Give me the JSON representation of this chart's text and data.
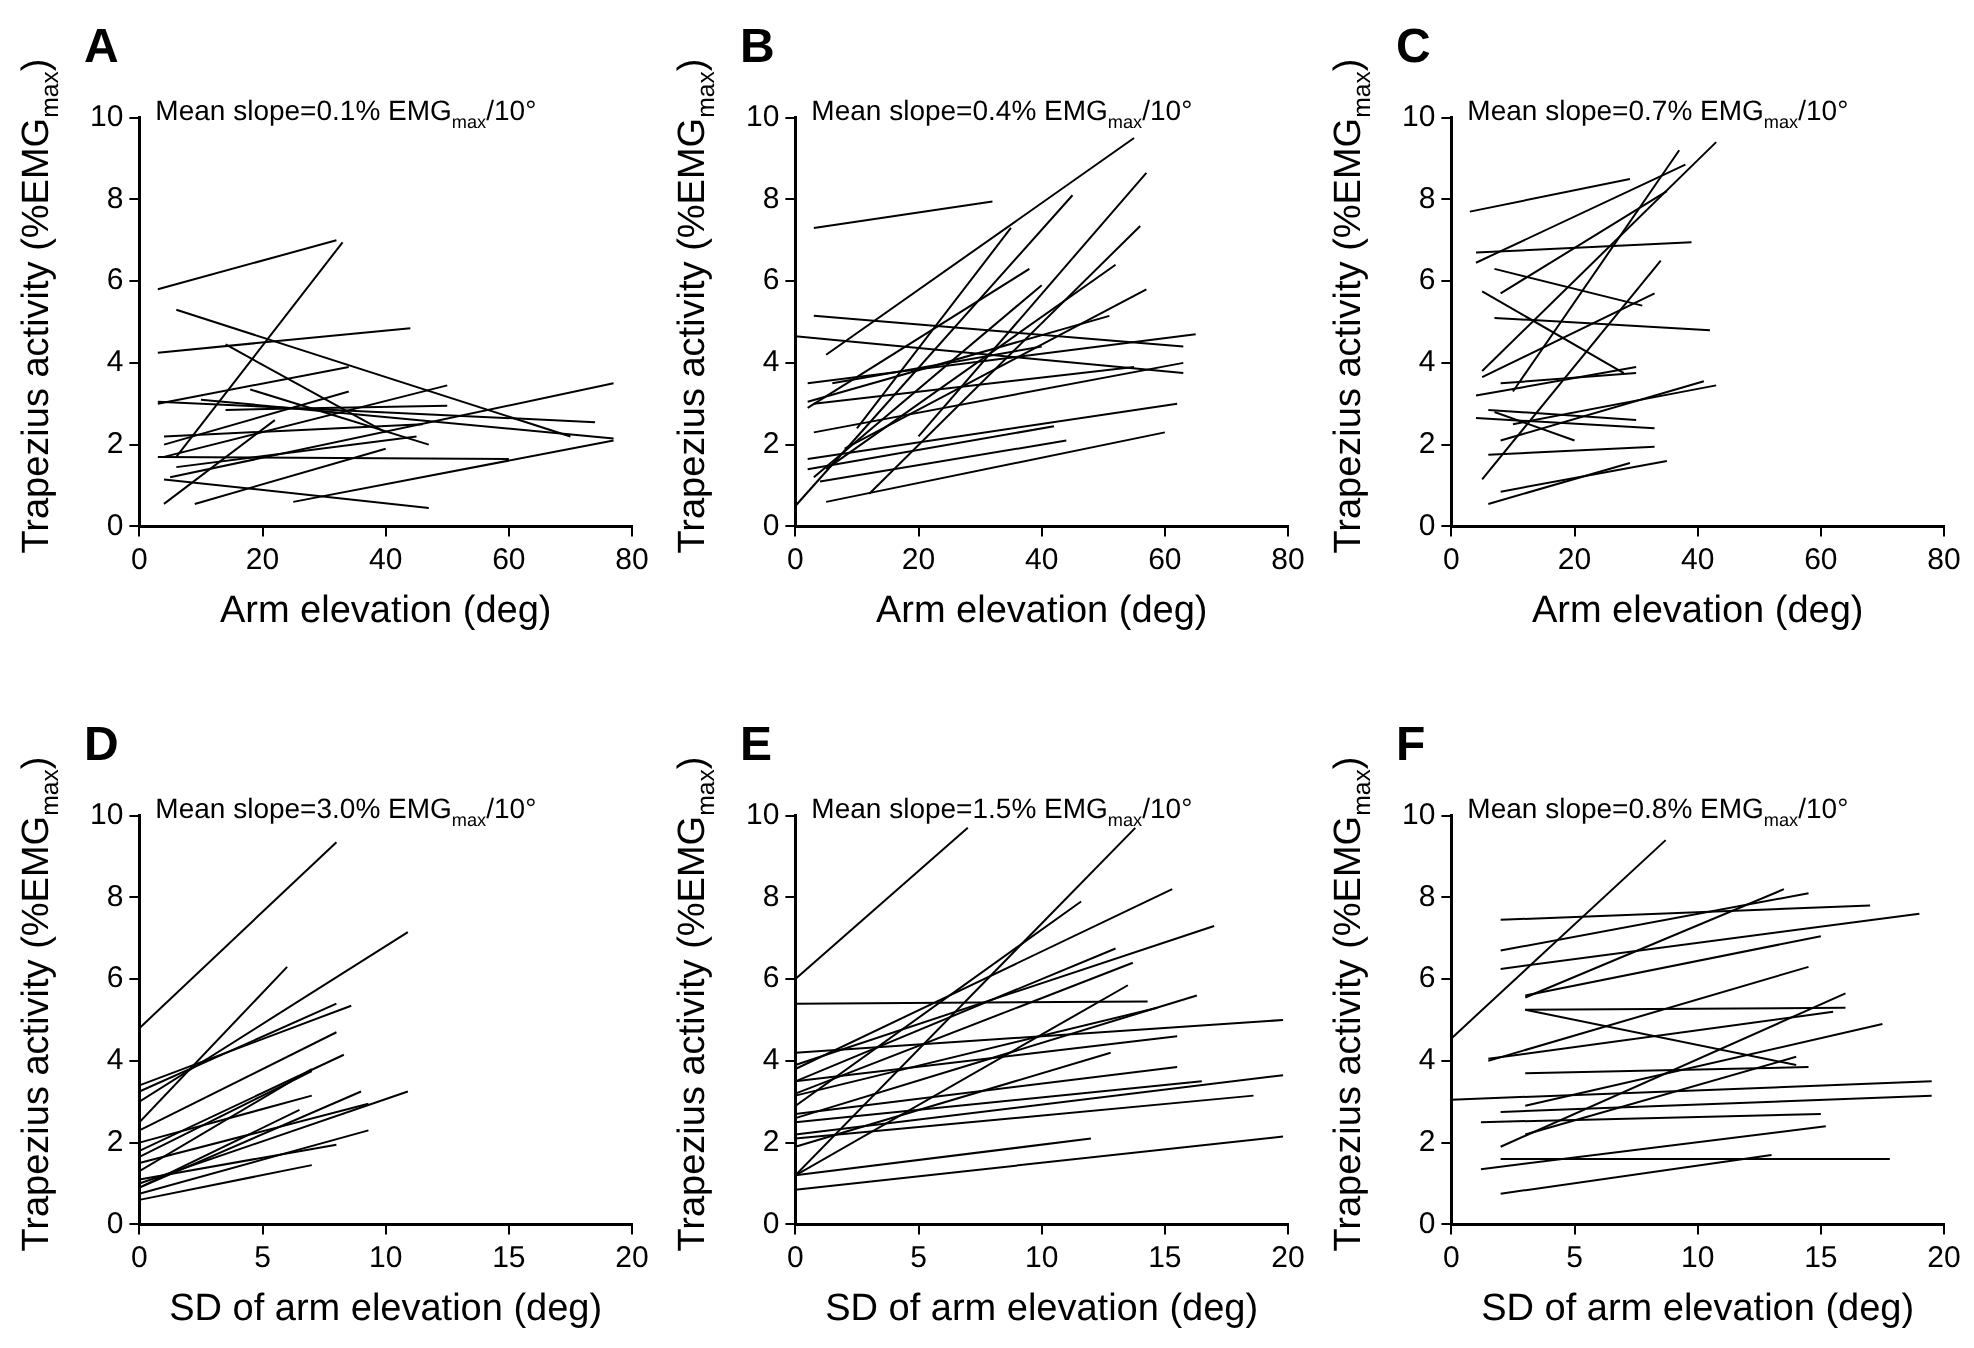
{
  "chart_data": [
    {
      "type": "line",
      "title": "A",
      "xlabel": "Arm elevation (deg)",
      "ylabel": "Trapezius activity (%EMG$_{max}$)",
      "annotations": [
        "Mean slope=0.1% EMG$_{max}$/10°"
      ],
      "xlim": [
        0,
        80
      ],
      "xticks": [
        0,
        20,
        40,
        60,
        80
      ],
      "ylim": [
        0,
        10
      ],
      "yticks": [
        0,
        2,
        4,
        6,
        8,
        10
      ],
      "grid": false,
      "legend": false,
      "series": [
        {
          "color": "#000000",
          "x": [
            3,
            32
          ],
          "values": [
            5.8,
            7.0
          ]
        },
        {
          "color": "#000000",
          "x": [
            6,
            33
          ],
          "values": [
            1.7,
            6.95
          ]
        },
        {
          "color": "#000000",
          "x": [
            6,
            70
          ],
          "values": [
            5.3,
            2.2
          ]
        },
        {
          "color": "#000000",
          "x": [
            3,
            44
          ],
          "values": [
            4.25,
            4.85
          ]
        },
        {
          "color": "#000000",
          "x": [
            3,
            34
          ],
          "values": [
            3.0,
            3.9
          ]
        },
        {
          "color": "#000000",
          "x": [
            14,
            40
          ],
          "values": [
            4.45,
            2.3
          ]
        },
        {
          "color": "#000000",
          "x": [
            3,
            74
          ],
          "values": [
            3.05,
            2.55
          ]
        },
        {
          "color": "#000000",
          "x": [
            18,
            47
          ],
          "values": [
            3.35,
            2.0
          ]
        },
        {
          "color": "#000000",
          "x": [
            4,
            34
          ],
          "values": [
            2.0,
            3.3
          ]
        },
        {
          "color": "#000000",
          "x": [
            4,
            50
          ],
          "values": [
            1.7,
            3.45
          ]
        },
        {
          "color": "#000000",
          "x": [
            10,
            77
          ],
          "values": [
            3.1,
            2.15
          ]
        },
        {
          "color": "#000000",
          "x": [
            25,
            77
          ],
          "values": [
            0.6,
            2.1
          ]
        },
        {
          "color": "#000000",
          "x": [
            4,
            22
          ],
          "values": [
            0.55,
            2.6
          ]
        },
        {
          "color": "#000000",
          "x": [
            4,
            47
          ],
          "values": [
            1.15,
            0.45
          ]
        },
        {
          "color": "#000000",
          "x": [
            9,
            40
          ],
          "values": [
            0.55,
            1.9
          ]
        },
        {
          "color": "#000000",
          "x": [
            3,
            60
          ],
          "values": [
            1.7,
            1.65
          ]
        },
        {
          "color": "#000000",
          "x": [
            5,
            77
          ],
          "values": [
            1.2,
            3.5
          ]
        },
        {
          "color": "#000000",
          "x": [
            6,
            45
          ],
          "values": [
            1.45,
            2.2
          ]
        },
        {
          "color": "#000000",
          "x": [
            14,
            50
          ],
          "values": [
            2.85,
            2.95
          ]
        },
        {
          "color": "#000000",
          "x": [
            4,
            46
          ],
          "values": [
            2.2,
            2.5
          ]
        }
      ]
    },
    {
      "type": "line",
      "title": "B",
      "xlabel": "Arm elevation (deg)",
      "ylabel": "Trapezius activity (%EMG$_{max}$)",
      "annotations": [
        "Mean slope=0.4% EMG$_{max}$/10°"
      ],
      "xlim": [
        0,
        80
      ],
      "xticks": [
        0,
        20,
        40,
        60,
        80
      ],
      "ylim": [
        0,
        10
      ],
      "yticks": [
        0,
        2,
        4,
        6,
        8,
        10
      ],
      "grid": false,
      "legend": false,
      "series": [
        {
          "color": "#000000",
          "x": [
            3,
            32
          ],
          "values": [
            7.3,
            7.95
          ]
        },
        {
          "color": "#000000",
          "x": [
            0,
            45
          ],
          "values": [
            0.5,
            8.1
          ]
        },
        {
          "color": "#000000",
          "x": [
            5,
            55
          ],
          "values": [
            4.2,
            9.5
          ]
        },
        {
          "color": "#000000",
          "x": [
            3,
            63
          ],
          "values": [
            5.15,
            4.4
          ]
        },
        {
          "color": "#000000",
          "x": [
            0,
            63
          ],
          "values": [
            4.65,
            3.75
          ]
        },
        {
          "color": "#000000",
          "x": [
            20,
            57
          ],
          "values": [
            2.2,
            8.65
          ]
        },
        {
          "color": "#000000",
          "x": [
            10,
            35
          ],
          "values": [
            2.4,
            7.3
          ]
        },
        {
          "color": "#000000",
          "x": [
            2,
            38
          ],
          "values": [
            2.9,
            6.3
          ]
        },
        {
          "color": "#000000",
          "x": [
            12,
            56
          ],
          "values": [
            0.8,
            7.35
          ]
        },
        {
          "color": "#000000",
          "x": [
            5,
            52
          ],
          "values": [
            1.4,
            6.4
          ]
        },
        {
          "color": "#000000",
          "x": [
            8,
            57
          ],
          "values": [
            1.9,
            5.8
          ]
        },
        {
          "color": "#000000",
          "x": [
            3,
            40
          ],
          "values": [
            1.2,
            5.9
          ]
        },
        {
          "color": "#000000",
          "x": [
            2,
            65
          ],
          "values": [
            3.5,
            4.7
          ]
        },
        {
          "color": "#000000",
          "x": [
            3,
            63
          ],
          "values": [
            2.3,
            4.0
          ]
        },
        {
          "color": "#000000",
          "x": [
            2,
            62
          ],
          "values": [
            1.65,
            3.0
          ]
        },
        {
          "color": "#000000",
          "x": [
            2,
            42
          ],
          "values": [
            1.4,
            2.45
          ]
        },
        {
          "color": "#000000",
          "x": [
            5,
            60
          ],
          "values": [
            0.6,
            2.3
          ]
        },
        {
          "color": "#000000",
          "x": [
            4,
            44
          ],
          "values": [
            1.1,
            2.1
          ]
        },
        {
          "color": "#000000",
          "x": [
            3,
            55
          ],
          "values": [
            3.0,
            3.9
          ]
        },
        {
          "color": "#000000",
          "x": [
            6,
            40
          ],
          "values": [
            3.5,
            4.4
          ]
        },
        {
          "color": "#000000",
          "x": [
            2,
            51
          ],
          "values": [
            3.05,
            5.15
          ]
        }
      ]
    },
    {
      "type": "line",
      "title": "C",
      "xlabel": "Arm elevation (deg)",
      "ylabel": "Trapezius activity (%EMG$_{max}$)",
      "annotations": [
        "Mean slope=0.7% EMG$_{max}$/10°"
      ],
      "xlim": [
        0,
        80
      ],
      "xticks": [
        0,
        20,
        40,
        60,
        80
      ],
      "ylim": [
        0,
        10
      ],
      "yticks": [
        0,
        2,
        4,
        6,
        8,
        10
      ],
      "grid": false,
      "legend": false,
      "series": [
        {
          "color": "#000000",
          "x": [
            3,
            29
          ],
          "values": [
            7.7,
            8.5
          ]
        },
        {
          "color": "#000000",
          "x": [
            4,
            38
          ],
          "values": [
            6.45,
            8.85
          ]
        },
        {
          "color": "#000000",
          "x": [
            4,
            39
          ],
          "values": [
            6.7,
            6.95
          ]
        },
        {
          "color": "#000000",
          "x": [
            10,
            37
          ],
          "values": [
            3.3,
            9.2
          ]
        },
        {
          "color": "#000000",
          "x": [
            5,
            43
          ],
          "values": [
            3.8,
            9.4
          ]
        },
        {
          "color": "#000000",
          "x": [
            7,
            31
          ],
          "values": [
            6.3,
            5.4
          ]
        },
        {
          "color": "#000000",
          "x": [
            8,
            35
          ],
          "values": [
            5.7,
            8.2
          ]
        },
        {
          "color": "#000000",
          "x": [
            5,
            28
          ],
          "values": [
            5.75,
            3.75
          ]
        },
        {
          "color": "#000000",
          "x": [
            7,
            42
          ],
          "values": [
            5.1,
            4.8
          ]
        },
        {
          "color": "#000000",
          "x": [
            5,
            34
          ],
          "values": [
            1.15,
            6.5
          ]
        },
        {
          "color": "#000000",
          "x": [
            4,
            30
          ],
          "values": [
            3.2,
            3.9
          ]
        },
        {
          "color": "#000000",
          "x": [
            6,
            29
          ],
          "values": [
            0.55,
            1.55
          ]
        },
        {
          "color": "#000000",
          "x": [
            8,
            35
          ],
          "values": [
            0.85,
            1.6
          ]
        },
        {
          "color": "#000000",
          "x": [
            6,
            33
          ],
          "values": [
            1.75,
            1.95
          ]
        },
        {
          "color": "#000000",
          "x": [
            4,
            33
          ],
          "values": [
            2.65,
            2.4
          ]
        },
        {
          "color": "#000000",
          "x": [
            6,
            30
          ],
          "values": [
            2.85,
            2.6
          ]
        },
        {
          "color": "#000000",
          "x": [
            8,
            41
          ],
          "values": [
            2.1,
            3.55
          ]
        },
        {
          "color": "#000000",
          "x": [
            7,
            20
          ],
          "values": [
            2.8,
            2.1
          ]
        },
        {
          "color": "#000000",
          "x": [
            10,
            43
          ],
          "values": [
            2.5,
            3.45
          ]
        },
        {
          "color": "#000000",
          "x": [
            8,
            30
          ],
          "values": [
            3.5,
            3.75
          ]
        },
        {
          "color": "#000000",
          "x": [
            5,
            33
          ],
          "values": [
            3.65,
            5.7
          ]
        }
      ]
    },
    {
      "type": "line",
      "title": "D",
      "xlabel": "SD of arm elevation (deg)",
      "ylabel": "Trapezius activity (%EMG$_{max}$)",
      "annotations": [
        "Mean slope=3.0% EMG$_{max}$/10°"
      ],
      "xlim": [
        0,
        20
      ],
      "xticks": [
        0,
        5,
        10,
        15,
        20
      ],
      "ylim": [
        0,
        10
      ],
      "yticks": [
        0,
        2,
        4,
        6,
        8,
        10
      ],
      "grid": false,
      "legend": false,
      "series": [
        {
          "color": "#000000",
          "x": [
            0,
            8
          ],
          "values": [
            4.8,
            9.35
          ]
        },
        {
          "color": "#000000",
          "x": [
            0,
            6
          ],
          "values": [
            2.5,
            6.3
          ]
        },
        {
          "color": "#000000",
          "x": [
            0,
            10.9
          ],
          "values": [
            3.0,
            7.15
          ]
        },
        {
          "color": "#000000",
          "x": [
            0,
            8.6
          ],
          "values": [
            3.4,
            5.35
          ]
        },
        {
          "color": "#000000",
          "x": [
            0,
            8
          ],
          "values": [
            3.25,
            5.4
          ]
        },
        {
          "color": "#000000",
          "x": [
            0,
            8
          ],
          "values": [
            2.3,
            4.7
          ]
        },
        {
          "color": "#000000",
          "x": [
            0,
            8.3
          ],
          "values": [
            1.8,
            4.15
          ]
        },
        {
          "color": "#000000",
          "x": [
            0,
            7
          ],
          "values": [
            1.3,
            3.8
          ]
        },
        {
          "color": "#000000",
          "x": [
            0,
            10.9
          ],
          "values": [
            1.0,
            3.25
          ]
        },
        {
          "color": "#000000",
          "x": [
            0,
            9
          ],
          "values": [
            0.9,
            3.25
          ]
        },
        {
          "color": "#000000",
          "x": [
            0,
            7
          ],
          "values": [
            0.6,
            1.45
          ]
        },
        {
          "color": "#000000",
          "x": [
            0,
            9.3
          ],
          "values": [
            0.75,
            2.3
          ]
        },
        {
          "color": "#000000",
          "x": [
            0,
            8
          ],
          "values": [
            1.1,
            1.95
          ]
        },
        {
          "color": "#000000",
          "x": [
            0,
            7
          ],
          "values": [
            2.0,
            3.15
          ]
        },
        {
          "color": "#000000",
          "x": [
            0,
            9.3
          ],
          "values": [
            1.5,
            2.95
          ]
        },
        {
          "color": "#000000",
          "x": [
            0,
            6.5
          ],
          "values": [
            0.9,
            2.8
          ]
        },
        {
          "color": "#000000",
          "x": [
            0,
            7
          ],
          "values": [
            1.65,
            3.75
          ]
        }
      ]
    },
    {
      "type": "line",
      "title": "E",
      "xlabel": "SD of arm elevation (deg)",
      "ylabel": "Trapezius activity (%EMG$_{max}$)",
      "annotations": [
        "Mean slope=1.5% EMG$_{max}$/10°"
      ],
      "xlim": [
        0,
        20
      ],
      "xticks": [
        0,
        5,
        10,
        15,
        20
      ],
      "ylim": [
        0,
        10
      ],
      "yticks": [
        0,
        2,
        4,
        6,
        8,
        10
      ],
      "grid": false,
      "legend": false,
      "series": [
        {
          "color": "#000000",
          "x": [
            0,
            7
          ],
          "values": [
            6.0,
            9.7
          ]
        },
        {
          "color": "#000000",
          "x": [
            0,
            13.8
          ],
          "values": [
            1.2,
            9.7
          ]
        },
        {
          "color": "#000000",
          "x": [
            0,
            11.6
          ],
          "values": [
            2.9,
            7.9
          ]
        },
        {
          "color": "#000000",
          "x": [
            0,
            15.3
          ],
          "values": [
            3.8,
            8.2
          ]
        },
        {
          "color": "#000000",
          "x": [
            0,
            17
          ],
          "values": [
            3.9,
            7.3
          ]
        },
        {
          "color": "#000000",
          "x": [
            0,
            14.3
          ],
          "values": [
            5.4,
            5.45
          ]
        },
        {
          "color": "#000000",
          "x": [
            0,
            13
          ],
          "values": [
            3.5,
            6.75
          ]
        },
        {
          "color": "#000000",
          "x": [
            0,
            13.7
          ],
          "values": [
            3.2,
            6.4
          ]
        },
        {
          "color": "#000000",
          "x": [
            0,
            16.3
          ],
          "values": [
            2.6,
            5.6
          ]
        },
        {
          "color": "#000000",
          "x": [
            0,
            19.8
          ],
          "values": [
            4.2,
            5.0
          ]
        },
        {
          "color": "#000000",
          "x": [
            0,
            13.5
          ],
          "values": [
            1.2,
            5.85
          ]
        },
        {
          "color": "#000000",
          "x": [
            0,
            15.5
          ],
          "values": [
            2.7,
            3.85
          ]
        },
        {
          "color": "#000000",
          "x": [
            0,
            19.8
          ],
          "values": [
            2.2,
            3.65
          ]
        },
        {
          "color": "#000000",
          "x": [
            0,
            18.6
          ],
          "values": [
            2.1,
            3.15
          ]
        },
        {
          "color": "#000000",
          "x": [
            0,
            12
          ],
          "values": [
            1.2,
            2.1
          ]
        },
        {
          "color": "#000000",
          "x": [
            0,
            19.8
          ],
          "values": [
            0.85,
            2.15
          ]
        },
        {
          "color": "#000000",
          "x": [
            0,
            12.8
          ],
          "values": [
            1.9,
            4.2
          ]
        },
        {
          "color": "#000000",
          "x": [
            0,
            16.5
          ],
          "values": [
            2.5,
            3.5
          ]
        },
        {
          "color": "#000000",
          "x": [
            0,
            15.5
          ],
          "values": [
            3.5,
            4.6
          ]
        },
        {
          "color": "#000000",
          "x": [
            0,
            14.7
          ],
          "values": [
            3.15,
            5.3
          ]
        }
      ]
    },
    {
      "type": "line",
      "title": "F",
      "xlabel": "SD of arm elevation (deg)",
      "ylabel": "Trapezius activity (%EMG$_{max}$)",
      "annotations": [
        "Mean slope=0.8% EMG$_{max}$/10°"
      ],
      "xlim": [
        0,
        20
      ],
      "xticks": [
        0,
        5,
        10,
        15,
        20
      ],
      "ylim": [
        0,
        10
      ],
      "yticks": [
        0,
        2,
        4,
        6,
        8,
        10
      ],
      "grid": false,
      "legend": false,
      "series": [
        {
          "color": "#000000",
          "x": [
            0,
            8.7
          ],
          "values": [
            4.55,
            9.4
          ]
        },
        {
          "color": "#000000",
          "x": [
            2,
            17
          ],
          "values": [
            7.45,
            7.8
          ]
        },
        {
          "color": "#000000",
          "x": [
            2,
            14.5
          ],
          "values": [
            6.7,
            8.1
          ]
        },
        {
          "color": "#000000",
          "x": [
            3,
            13.5
          ],
          "values": [
            5.55,
            8.2
          ]
        },
        {
          "color": "#000000",
          "x": [
            2,
            19
          ],
          "values": [
            6.25,
            7.6
          ]
        },
        {
          "color": "#000000",
          "x": [
            3,
            15
          ],
          "values": [
            5.6,
            7.05
          ]
        },
        {
          "color": "#000000",
          "x": [
            1.5,
            14.5
          ],
          "values": [
            4.0,
            6.3
          ]
        },
        {
          "color": "#000000",
          "x": [
            3,
            16
          ],
          "values": [
            5.25,
            5.3
          ]
        },
        {
          "color": "#000000",
          "x": [
            3,
            14
          ],
          "values": [
            5.25,
            3.9
          ]
        },
        {
          "color": "#000000",
          "x": [
            2,
            16
          ],
          "values": [
            1.9,
            5.65
          ]
        },
        {
          "color": "#000000",
          "x": [
            3,
            17.5
          ],
          "values": [
            2.9,
            4.9
          ]
        },
        {
          "color": "#000000",
          "x": [
            0,
            19.5
          ],
          "values": [
            3.05,
            3.5
          ]
        },
        {
          "color": "#000000",
          "x": [
            2,
            19.5
          ],
          "values": [
            2.75,
            3.15
          ]
        },
        {
          "color": "#000000",
          "x": [
            1.2,
            15
          ],
          "values": [
            2.5,
            2.7
          ]
        },
        {
          "color": "#000000",
          "x": [
            1.2,
            15.2
          ],
          "values": [
            1.35,
            2.4
          ]
        },
        {
          "color": "#000000",
          "x": [
            2,
            13
          ],
          "values": [
            0.75,
            1.7
          ]
        },
        {
          "color": "#000000",
          "x": [
            2,
            17.8
          ],
          "values": [
            1.6,
            1.6
          ]
        },
        {
          "color": "#000000",
          "x": [
            3,
            14
          ],
          "values": [
            2.2,
            4.1
          ]
        },
        {
          "color": "#000000",
          "x": [
            3,
            14.5
          ],
          "values": [
            3.7,
            3.85
          ]
        },
        {
          "color": "#000000",
          "x": [
            1.5,
            15.5
          ],
          "values": [
            4.05,
            5.2
          ]
        }
      ]
    }
  ]
}
